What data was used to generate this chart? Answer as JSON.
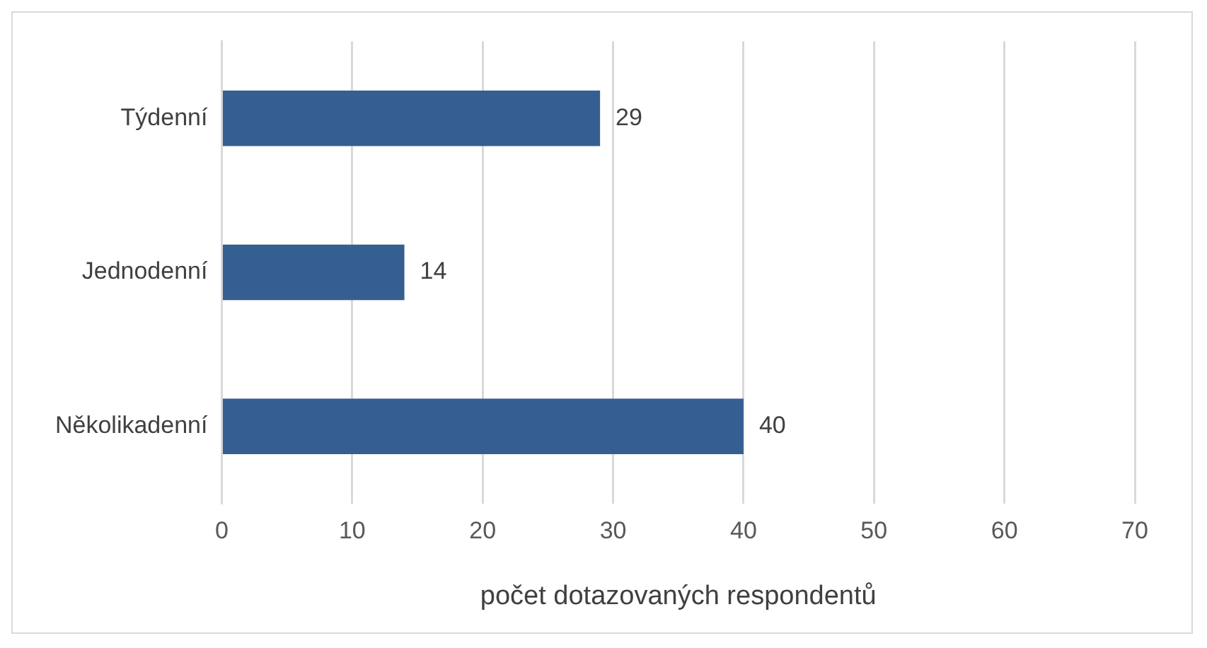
{
  "chart_data": {
    "type": "bar",
    "orientation": "horizontal",
    "xlabel": "počet dotazovaných respondentů",
    "categories": [
      "Týdenní",
      "Jednodenní",
      "Několikadenní"
    ],
    "values": [
      29,
      14,
      40
    ],
    "color": "#365f91",
    "data_labels": true,
    "xlim": [
      0,
      70
    ],
    "xticks": [
      0,
      10,
      20,
      30,
      40,
      50,
      60,
      70
    ],
    "grid": "x",
    "legend": false
  }
}
